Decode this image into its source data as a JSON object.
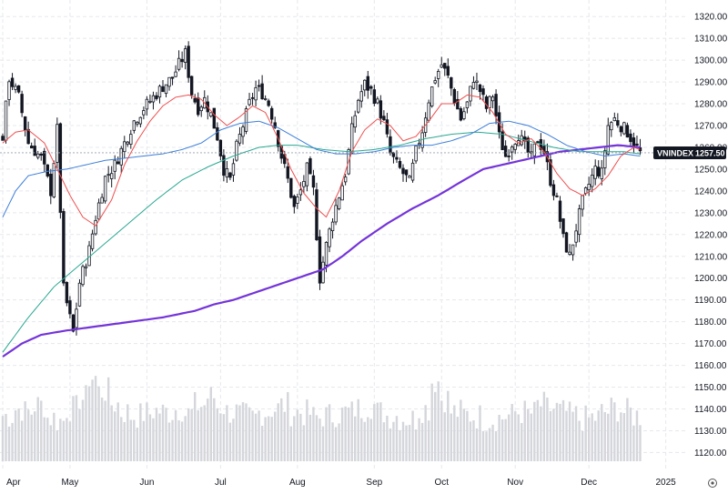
{
  "chart_data": {
    "type": "candlestick",
    "symbol": "VNINDEX",
    "last_price": "1257.50",
    "y_tick_labels": [
      "1320.00",
      "1310.00",
      "1300.00",
      "1290.00",
      "1280.00",
      "1270.00",
      "1260.00",
      "1250.00",
      "1240.00",
      "1230.00",
      "1220.00",
      "1210.00",
      "1200.00",
      "1190.00",
      "1180.00",
      "1170.00",
      "1160.00",
      "1150.00",
      "1140.00",
      "1130.00",
      "1120.00"
    ],
    "ylim": [
      1116,
      1323
    ],
    "x_tick_labels": [
      "Apr",
      "May",
      "Jun",
      "Jul",
      "Aug",
      "Sep",
      "Oct",
      "Nov",
      "Dec",
      "2025"
    ],
    "price_knots": [
      [
        0,
        1265
      ],
      [
        2,
        1292
      ],
      [
        5,
        1283
      ],
      [
        8,
        1262
      ],
      [
        12,
        1255
      ],
      [
        15,
        1240
      ],
      [
        17,
        1268
      ],
      [
        19,
        1195
      ],
      [
        22,
        1175
      ],
      [
        24,
        1198
      ],
      [
        27,
        1213
      ],
      [
        29,
        1228
      ],
      [
        32,
        1246
      ],
      [
        35,
        1252
      ],
      [
        38,
        1262
      ],
      [
        41,
        1272
      ],
      [
        44,
        1278
      ],
      [
        47,
        1283
      ],
      [
        50,
        1288
      ],
      [
        53,
        1292
      ],
      [
        55,
        1298
      ],
      [
        57,
        1303
      ],
      [
        59,
        1285
      ],
      [
        61,
        1278
      ],
      [
        63,
        1282
      ],
      [
        65,
        1275
      ],
      [
        67,
        1265
      ],
      [
        69,
        1250
      ],
      [
        71,
        1245
      ],
      [
        73,
        1260
      ],
      [
        75,
        1270
      ],
      [
        77,
        1280
      ],
      [
        79,
        1287
      ],
      [
        81,
        1285
      ],
      [
        83,
        1280
      ],
      [
        85,
        1270
      ],
      [
        87,
        1256
      ],
      [
        89,
        1245
      ],
      [
        91,
        1232
      ],
      [
        93,
        1240
      ],
      [
        95,
        1250
      ],
      [
        97,
        1240
      ],
      [
        99,
        1200
      ],
      [
        101,
        1215
      ],
      [
        103,
        1228
      ],
      [
        105,
        1238
      ],
      [
        107,
        1248
      ],
      [
        109,
        1268
      ],
      [
        111,
        1282
      ],
      [
        113,
        1289
      ],
      [
        115,
        1286
      ],
      [
        117,
        1280
      ],
      [
        119,
        1271
      ],
      [
        121,
        1257
      ],
      [
        123,
        1252
      ],
      [
        125,
        1248
      ],
      [
        127,
        1244
      ],
      [
        129,
        1258
      ],
      [
        131,
        1268
      ],
      [
        133,
        1282
      ],
      [
        135,
        1292
      ],
      [
        137,
        1298
      ],
      [
        139,
        1292
      ],
      [
        141,
        1282
      ],
      [
        143,
        1273
      ],
      [
        145,
        1280
      ],
      [
        147,
        1292
      ],
      [
        149,
        1286
      ],
      [
        151,
        1278
      ],
      [
        153,
        1284
      ],
      [
        155,
        1265
      ],
      [
        157,
        1256
      ],
      [
        159,
        1262
      ],
      [
        161,
        1266
      ],
      [
        163,
        1260
      ],
      [
        165,
        1255
      ],
      [
        167,
        1264
      ],
      [
        169,
        1258
      ],
      [
        171,
        1245
      ],
      [
        173,
        1235
      ],
      [
        175,
        1218
      ],
      [
        177,
        1210
      ],
      [
        179,
        1223
      ],
      [
        181,
        1235
      ],
      [
        183,
        1243
      ],
      [
        185,
        1250
      ],
      [
        187,
        1248
      ],
      [
        189,
        1270
      ],
      [
        191,
        1273
      ],
      [
        193,
        1270
      ],
      [
        195,
        1267
      ],
      [
        197,
        1262
      ],
      [
        199,
        1257.5
      ]
    ],
    "ma_fast_knots": [
      [
        0,
        1262
      ],
      [
        4,
        1267
      ],
      [
        8,
        1268
      ],
      [
        13,
        1262
      ],
      [
        17,
        1250
      ],
      [
        21,
        1238
      ],
      [
        25,
        1228
      ],
      [
        29,
        1224
      ],
      [
        34,
        1236
      ],
      [
        38,
        1252
      ],
      [
        42,
        1263
      ],
      [
        46,
        1272
      ],
      [
        50,
        1279
      ],
      [
        54,
        1283
      ],
      [
        58,
        1284
      ],
      [
        62,
        1282
      ],
      [
        66,
        1275
      ],
      [
        70,
        1270
      ],
      [
        74,
        1274
      ],
      [
        78,
        1279
      ],
      [
        82,
        1276
      ],
      [
        86,
        1264
      ],
      [
        90,
        1250
      ],
      [
        94,
        1239
      ],
      [
        98,
        1232
      ],
      [
        101,
        1228
      ],
      [
        105,
        1240
      ],
      [
        109,
        1258
      ],
      [
        113,
        1268
      ],
      [
        117,
        1273
      ],
      [
        121,
        1270
      ],
      [
        125,
        1263
      ],
      [
        129,
        1265
      ],
      [
        133,
        1272
      ],
      [
        137,
        1280
      ],
      [
        141,
        1280
      ],
      [
        145,
        1284
      ],
      [
        149,
        1283
      ],
      [
        153,
        1276
      ],
      [
        157,
        1266
      ],
      [
        161,
        1262
      ],
      [
        165,
        1264
      ],
      [
        169,
        1258
      ],
      [
        173,
        1248
      ],
      [
        177,
        1241
      ],
      [
        181,
        1238
      ],
      [
        185,
        1241
      ],
      [
        189,
        1247
      ],
      [
        193,
        1256
      ],
      [
        197,
        1260
      ],
      [
        199,
        1259
      ]
    ],
    "ma_mid_knots": [
      [
        0,
        1228
      ],
      [
        4,
        1240
      ],
      [
        8,
        1247
      ],
      [
        14,
        1249
      ],
      [
        20,
        1250
      ],
      [
        26,
        1252
      ],
      [
        32,
        1254
      ],
      [
        38,
        1255
      ],
      [
        44,
        1256
      ],
      [
        50,
        1257
      ],
      [
        56,
        1259
      ],
      [
        62,
        1262
      ],
      [
        68,
        1268
      ],
      [
        74,
        1271
      ],
      [
        80,
        1272
      ],
      [
        86,
        1269
      ],
      [
        92,
        1264
      ],
      [
        98,
        1259
      ],
      [
        104,
        1257
      ],
      [
        110,
        1257
      ],
      [
        116,
        1258
      ],
      [
        122,
        1260
      ],
      [
        128,
        1261
      ],
      [
        134,
        1261
      ],
      [
        140,
        1263
      ],
      [
        146,
        1266
      ],
      [
        152,
        1271
      ],
      [
        158,
        1272
      ],
      [
        164,
        1270
      ],
      [
        170,
        1266
      ],
      [
        176,
        1261
      ],
      [
        182,
        1258
      ],
      [
        188,
        1256
      ],
      [
        194,
        1257
      ],
      [
        199,
        1256
      ]
    ],
    "ma_slow_knots": [
      [
        0,
        1166
      ],
      [
        8,
        1182
      ],
      [
        16,
        1196
      ],
      [
        24,
        1206
      ],
      [
        32,
        1216
      ],
      [
        40,
        1226
      ],
      [
        48,
        1236
      ],
      [
        56,
        1245
      ],
      [
        64,
        1251
      ],
      [
        72,
        1256
      ],
      [
        80,
        1260
      ],
      [
        86,
        1261
      ],
      [
        92,
        1261
      ],
      [
        100,
        1259
      ],
      [
        108,
        1258
      ],
      [
        116,
        1259
      ],
      [
        124,
        1261
      ],
      [
        132,
        1264
      ],
      [
        140,
        1266
      ],
      [
        148,
        1267
      ],
      [
        156,
        1266
      ],
      [
        164,
        1263
      ],
      [
        172,
        1260
      ],
      [
        180,
        1258
      ],
      [
        188,
        1258
      ],
      [
        194,
        1258
      ],
      [
        199,
        1257
      ]
    ],
    "ma_long_knots": [
      [
        0,
        1164
      ],
      [
        6,
        1170
      ],
      [
        12,
        1174
      ],
      [
        20,
        1176
      ],
      [
        30,
        1178
      ],
      [
        40,
        1180
      ],
      [
        50,
        1182
      ],
      [
        60,
        1185
      ],
      [
        66,
        1188
      ],
      [
        72,
        1190
      ],
      [
        80,
        1194
      ],
      [
        88,
        1198
      ],
      [
        96,
        1202
      ],
      [
        100,
        1204
      ],
      [
        106,
        1210
      ],
      [
        112,
        1217
      ],
      [
        120,
        1225
      ],
      [
        128,
        1232
      ],
      [
        136,
        1238
      ],
      [
        144,
        1245
      ],
      [
        150,
        1250
      ],
      [
        156,
        1252
      ],
      [
        162,
        1254
      ],
      [
        168,
        1256
      ],
      [
        174,
        1258
      ],
      [
        180,
        1259
      ],
      [
        186,
        1260
      ],
      [
        192,
        1261
      ],
      [
        199,
        1260
      ]
    ],
    "volume_profile": [
      0.45,
      0.55,
      0.5,
      0.6,
      0.42,
      0.38,
      0.55,
      0.7,
      1.0,
      0.8,
      0.62,
      0.5,
      0.45,
      0.48,
      0.52,
      0.5,
      0.55,
      0.48,
      0.6,
      0.72,
      0.58,
      0.5,
      0.45,
      0.42,
      0.5,
      0.55,
      0.6,
      0.5,
      0.48,
      0.42,
      0.45,
      0.48,
      0.5,
      0.55,
      0.6,
      0.5,
      0.45,
      0.42,
      0.4,
      0.55,
      0.95,
      0.7,
      0.5,
      0.46,
      0.44,
      0.4,
      0.42,
      0.45,
      0.5,
      0.48,
      0.6,
      0.55,
      0.5,
      0.45,
      0.4,
      0.42,
      0.5,
      0.55,
      0.5,
      0.45
    ],
    "colors": {
      "background": "#ffffff",
      "candle": "#131722",
      "grid": "#e6e8ee",
      "ma_fast": "#ef4f4f",
      "ma_mid": "#3c7ed9",
      "ma_slow": "#29a891",
      "ma_long": "#7434d8",
      "volume": "#d4d6db",
      "badge": "#131722"
    }
  }
}
